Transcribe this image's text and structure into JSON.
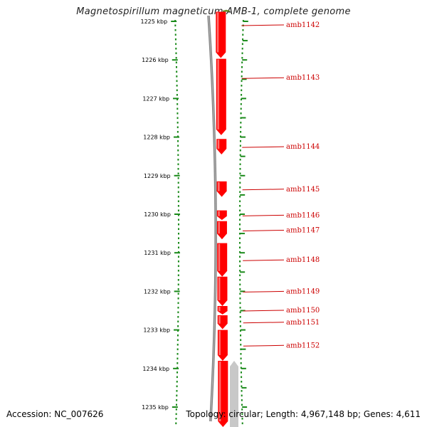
{
  "title": "Magnetospirillum magneticum AMB-1, complete genome",
  "footer": {
    "accession": "Accession: NC_007626",
    "topology": "Topology: circular; Length: 4,967,148 bp; Genes: 4,611"
  },
  "colors": {
    "gene_fwd": "#ff0000",
    "gene_other": "#c8c8c8",
    "gene_green": "#6a8f2a",
    "backbone": "#808080",
    "ticks": "#1a8a1a",
    "label": "#cc0000"
  },
  "chart_data": {
    "type": "genome-map",
    "unit": "kbp",
    "tick_labels": [
      "1225 kbp",
      "1226 kbp",
      "1227 kbp",
      "1228 kbp",
      "1229 kbp",
      "1230 kbp",
      "1231 kbp",
      "1232 kbp",
      "1233 kbp",
      "1234 kbp",
      "1235 kbp"
    ],
    "tick_values": [
      1225,
      1226,
      1227,
      1228,
      1229,
      1230,
      1231,
      1232,
      1233,
      1234,
      1235
    ],
    "range_kbp": [
      1224.7,
      1235.6
    ],
    "genes": [
      {
        "label": "",
        "start": 1224.7,
        "end": 1224.75,
        "strand": "reverse",
        "color": "green"
      },
      {
        "label": "amb1142",
        "start": 1224.75,
        "end": 1225.95,
        "strand": "forward",
        "color": "red"
      },
      {
        "label": "amb1143",
        "start": 1225.97,
        "end": 1227.95,
        "strand": "forward",
        "color": "red"
      },
      {
        "label": "amb1144",
        "start": 1228.05,
        "end": 1228.45,
        "strand": "forward",
        "color": "red"
      },
      {
        "label": "amb1145",
        "start": 1229.15,
        "end": 1229.55,
        "strand": "forward",
        "color": "red"
      },
      {
        "label": "amb1146",
        "start": 1229.9,
        "end": 1230.15,
        "strand": "forward",
        "color": "red"
      },
      {
        "label": "amb1147",
        "start": 1230.18,
        "end": 1230.65,
        "strand": "forward",
        "color": "red"
      },
      {
        "label": "amb1148",
        "start": 1230.75,
        "end": 1231.62,
        "strand": "forward",
        "color": "red"
      },
      {
        "label": "amb1149",
        "start": 1231.62,
        "end": 1232.38,
        "strand": "forward",
        "color": "red"
      },
      {
        "label": "amb1150",
        "start": 1232.38,
        "end": 1232.6,
        "strand": "forward",
        "color": "red"
      },
      {
        "label": "amb1151",
        "start": 1232.62,
        "end": 1232.98,
        "strand": "forward",
        "color": "red"
      },
      {
        "label": "amb1152",
        "start": 1233.0,
        "end": 1233.8,
        "strand": "forward",
        "color": "red"
      },
      {
        "label": "",
        "start": 1233.8,
        "end": 1235.6,
        "strand": "forward",
        "color": "red"
      },
      {
        "label": "",
        "start": 1233.8,
        "end": 1235.6,
        "strand": "reverse",
        "color": "gray"
      }
    ]
  }
}
